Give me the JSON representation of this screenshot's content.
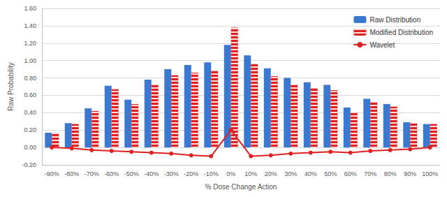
{
  "chart_data": {
    "type": "bar",
    "x_label": "% Dose Change Action",
    "y_label": "Raw Probability",
    "categories": [
      "-90%",
      "-80%",
      "-70%",
      "-60%",
      "-50%",
      "-40%",
      "-30%",
      "-20%",
      "-10%",
      "0%",
      "10%",
      "20%",
      "30%",
      "40%",
      "50%",
      "60%",
      "70%",
      "80%",
      "90%",
      "100%"
    ],
    "series": [
      {
        "name": "Raw Distribution",
        "type": "bar",
        "color": "#3b78d0",
        "values": [
          0.17,
          0.28,
          0.45,
          0.71,
          0.55,
          0.78,
          0.9,
          0.95,
          0.98,
          1.18,
          1.06,
          0.91,
          0.8,
          0.75,
          0.72,
          0.46,
          0.56,
          0.5,
          0.29,
          0.27
        ]
      },
      {
        "name": "Modified Distribution",
        "type": "bar",
        "color": "#e02020",
        "marker": "hatched",
        "values": [
          0.17,
          0.27,
          0.42,
          0.67,
          0.5,
          0.72,
          0.83,
          0.86,
          0.88,
          1.38,
          0.96,
          0.82,
          0.72,
          0.68,
          0.66,
          0.4,
          0.52,
          0.47,
          0.28,
          0.27
        ]
      },
      {
        "name": "Wavelet",
        "type": "line",
        "color": "#e02020",
        "marker": "circle",
        "values": [
          0.0,
          -0.01,
          -0.03,
          -0.04,
          -0.05,
          -0.06,
          -0.07,
          -0.09,
          -0.1,
          0.2,
          -0.1,
          -0.09,
          -0.07,
          -0.06,
          -0.05,
          -0.06,
          -0.04,
          -0.03,
          -0.02,
          0.0
        ]
      }
    ],
    "ylim": [
      -0.2,
      1.6
    ],
    "yticks": [
      {
        "value": -0.2,
        "label": "-0.20"
      },
      {
        "value": 0,
        "label": "0.00"
      },
      {
        "value": 0.2,
        "label": "0.20"
      },
      {
        "value": 0.4,
        "label": "0.40"
      },
      {
        "value": 0.6,
        "label": "0.60"
      },
      {
        "value": 0.8,
        "label": "0.80"
      },
      {
        "value": 1.0,
        "label": "1.00"
      },
      {
        "value": 1.2,
        "label": "1.20"
      },
      {
        "value": 1.4,
        "label": "1.40"
      },
      {
        "value": 1.6,
        "label": "1.60"
      }
    ],
    "grid": true,
    "legend": "upper right"
  }
}
